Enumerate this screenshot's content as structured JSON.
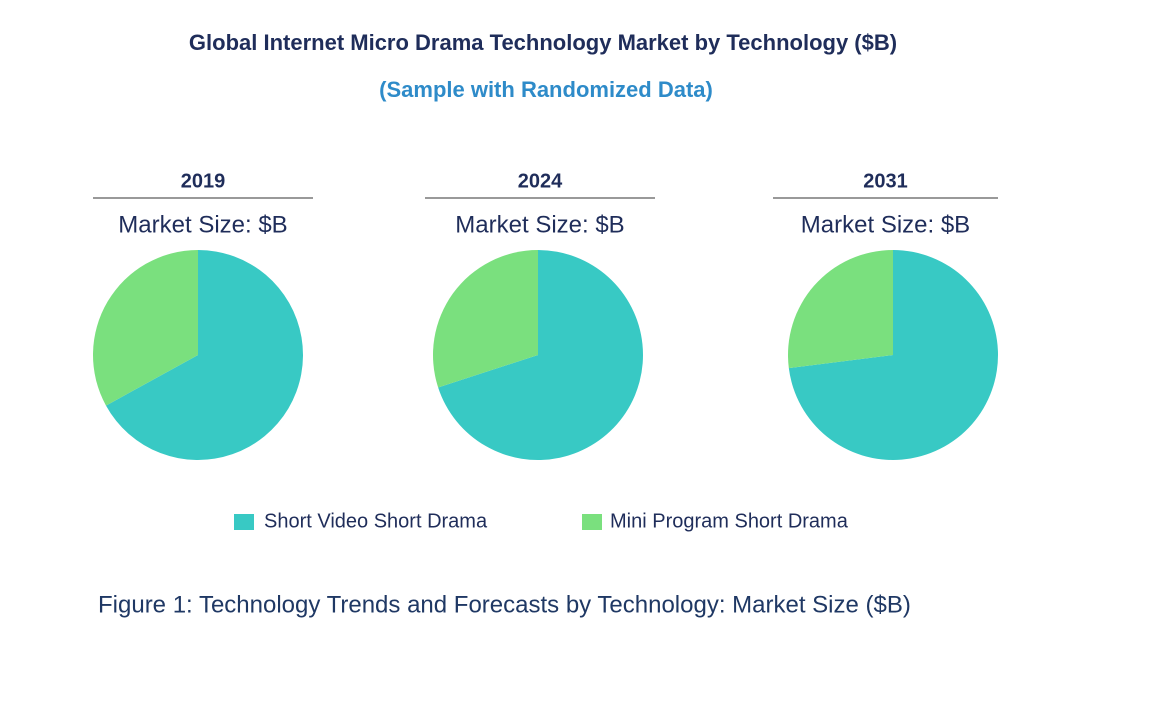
{
  "title": "Global Internet Micro Drama Technology Market by  Technology ($B)",
  "subtitle": "(Sample with Randomized Data)",
  "caption": "Figure 1: Technology Trends and Forecasts by Technology: Market Size ($B)",
  "chart_data": [
    {
      "type": "pie",
      "title": "2019",
      "subtitle": "Market Size: $B",
      "categories": [
        "Short Video  Short Drama",
        "Mini Program Short Drama"
      ],
      "values": [
        67,
        33
      ],
      "colors": [
        "#38c9c4",
        "#7ae07e"
      ]
    },
    {
      "type": "pie",
      "title": "2024",
      "subtitle": "Market Size: $B",
      "categories": [
        "Short Video  Short Drama",
        "Mini Program Short Drama"
      ],
      "values": [
        70,
        30
      ],
      "colors": [
        "#38c9c4",
        "#7ae07e"
      ]
    },
    {
      "type": "pie",
      "title": "2031",
      "subtitle": "Market Size: $B",
      "categories": [
        "Short Video  Short Drama",
        "Mini Program Short Drama"
      ],
      "values": [
        73,
        27
      ],
      "colors": [
        "#38c9c4",
        "#7ae07e"
      ]
    }
  ]
}
